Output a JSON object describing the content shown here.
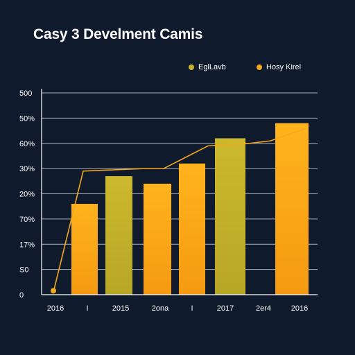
{
  "chart_data": {
    "type": "bar",
    "title": "Casy 3 Develment Camis",
    "xlabel": "",
    "ylabel": "",
    "grid": true,
    "legend_position": "top-right",
    "y_tick_labels": [
      "0",
      "S0",
      "17%",
      "70%",
      "20%",
      "30%",
      "60%",
      "50%",
      "500"
    ],
    "ylim": [
      0,
      8
    ],
    "x_tick_labels": [
      "2016",
      "I",
      "2015",
      "2ona",
      "I",
      "2017",
      "2er4",
      "2016"
    ],
    "series": [
      {
        "name": "EglLavb",
        "type": "bar",
        "color": "#c8b42c",
        "values": [
          4.7,
          6.2
        ]
      },
      {
        "name": "Hosy Kirel",
        "type": "bar",
        "color": "#f5a81c",
        "values": [
          3.6,
          4.4,
          5.2,
          6.8
        ]
      },
      {
        "name": "Hosy Kirel",
        "type": "line",
        "color": "#f5a81c",
        "values": [
          0.1,
          4.9,
          5.0,
          5.0,
          5.9,
          6.0,
          6.1,
          6.6
        ]
      }
    ]
  }
}
